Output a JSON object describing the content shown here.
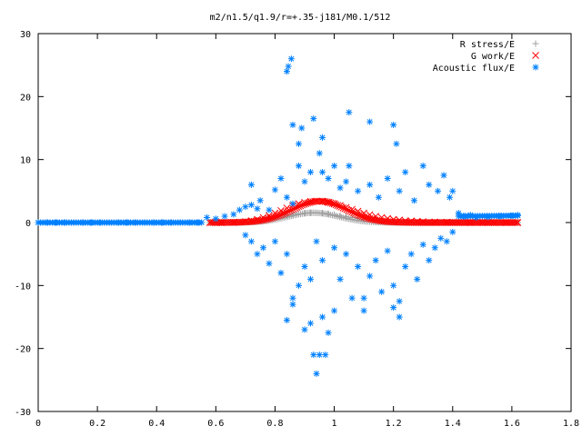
{
  "chart_data": {
    "type": "scatter",
    "title": "m2/n1.5/q1.9/r=+.35-j181/M0.1/512",
    "xlabel": "",
    "ylabel": "",
    "xlim": [
      0,
      1.8
    ],
    "ylim": [
      -30,
      30
    ],
    "x_ticks": [
      "0",
      "0.2",
      "0.4",
      "0.6",
      "0.8",
      "1",
      "1.2",
      "1.4",
      "1.6",
      "1.8"
    ],
    "y_ticks": [
      "30",
      "20",
      "10",
      "0",
      "-10",
      "-20",
      "-30"
    ],
    "grid": false,
    "legend_position": "top-right",
    "series": [
      {
        "name": "R stress/E",
        "marker": "plus",
        "color": "#a0a0a0",
        "points": [
          [
            0.58,
            0
          ],
          [
            0.62,
            0
          ],
          [
            0.66,
            0.02
          ],
          [
            0.7,
            0.1
          ],
          [
            0.72,
            0.2
          ],
          [
            0.74,
            0.3
          ],
          [
            0.76,
            0.5
          ],
          [
            0.78,
            0.65
          ],
          [
            0.8,
            0.8
          ],
          [
            0.82,
            1.0
          ],
          [
            0.84,
            1.15
          ],
          [
            0.86,
            1.3
          ],
          [
            0.88,
            1.4
          ],
          [
            0.9,
            1.5
          ],
          [
            0.92,
            1.55
          ],
          [
            0.94,
            1.55
          ],
          [
            0.96,
            1.5
          ],
          [
            0.98,
            1.4
          ],
          [
            1.0,
            1.25
          ],
          [
            1.02,
            1.1
          ],
          [
            1.04,
            0.95
          ],
          [
            1.06,
            0.8
          ],
          [
            1.08,
            0.65
          ],
          [
            1.1,
            0.5
          ],
          [
            1.12,
            0.4
          ],
          [
            1.14,
            0.3
          ],
          [
            1.16,
            0.2
          ],
          [
            1.18,
            0.15
          ],
          [
            1.2,
            0.1
          ],
          [
            1.24,
            0.05
          ],
          [
            1.28,
            0.02
          ],
          [
            1.32,
            0
          ],
          [
            1.36,
            0
          ],
          [
            1.4,
            0
          ],
          [
            1.44,
            0
          ],
          [
            1.48,
            0
          ],
          [
            1.52,
            0
          ],
          [
            1.56,
            0
          ],
          [
            1.6,
            0
          ],
          [
            1.62,
            0
          ]
        ]
      },
      {
        "name": "G work/E",
        "marker": "cross",
        "color": "#ff0000",
        "points": [
          [
            0.58,
            0
          ],
          [
            0.62,
            0
          ],
          [
            0.66,
            0.02
          ],
          [
            0.7,
            0.15
          ],
          [
            0.72,
            0.3
          ],
          [
            0.74,
            0.5
          ],
          [
            0.76,
            0.8
          ],
          [
            0.78,
            1.1
          ],
          [
            0.8,
            1.5
          ],
          [
            0.82,
            1.9
          ],
          [
            0.84,
            2.3
          ],
          [
            0.86,
            2.7
          ],
          [
            0.88,
            3.0
          ],
          [
            0.9,
            3.2
          ],
          [
            0.92,
            3.35
          ],
          [
            0.94,
            3.4
          ],
          [
            0.96,
            3.35
          ],
          [
            0.98,
            3.2
          ],
          [
            1.0,
            3.0
          ],
          [
            1.02,
            2.7
          ],
          [
            1.04,
            2.4
          ],
          [
            1.06,
            2.1
          ],
          [
            1.08,
            1.8
          ],
          [
            1.1,
            1.5
          ],
          [
            1.12,
            1.25
          ],
          [
            1.14,
            1.0
          ],
          [
            1.16,
            0.8
          ],
          [
            1.18,
            0.65
          ],
          [
            1.2,
            0.5
          ],
          [
            1.22,
            0.4
          ],
          [
            1.24,
            0.3
          ],
          [
            1.26,
            0.25
          ],
          [
            1.28,
            0.2
          ],
          [
            1.3,
            0.15
          ],
          [
            1.34,
            0.1
          ],
          [
            1.38,
            0.05
          ],
          [
            1.42,
            0
          ],
          [
            1.46,
            0
          ],
          [
            1.5,
            0
          ],
          [
            1.54,
            0
          ],
          [
            1.58,
            0
          ],
          [
            1.62,
            0
          ]
        ]
      },
      {
        "name": "Acoustic flux/E",
        "marker": "star",
        "color": "#0080ff",
        "points": [
          [
            0.0,
            0
          ],
          [
            0.03,
            0
          ],
          [
            0.06,
            0
          ],
          [
            0.09,
            0
          ],
          [
            0.12,
            0
          ],
          [
            0.15,
            0
          ],
          [
            0.18,
            0
          ],
          [
            0.21,
            0
          ],
          [
            0.24,
            0
          ],
          [
            0.27,
            0
          ],
          [
            0.3,
            0
          ],
          [
            0.33,
            0
          ],
          [
            0.36,
            0
          ],
          [
            0.39,
            0
          ],
          [
            0.42,
            0
          ],
          [
            0.45,
            0
          ],
          [
            0.48,
            0
          ],
          [
            0.51,
            0
          ],
          [
            0.54,
            0
          ],
          [
            0.57,
            0.8
          ],
          [
            0.6,
            0.6
          ],
          [
            0.63,
            1.0
          ],
          [
            0.66,
            1.3
          ],
          [
            0.68,
            2.0
          ],
          [
            0.7,
            2.5
          ],
          [
            0.72,
            2.8
          ],
          [
            0.74,
            2.2
          ],
          [
            0.78,
            2.0
          ],
          [
            0.72,
            6.0
          ],
          [
            0.75,
            3.5
          ],
          [
            0.8,
            5.2
          ],
          [
            0.82,
            7.0
          ],
          [
            0.84,
            4.0
          ],
          [
            0.86,
            3.0
          ],
          [
            0.88,
            9.0
          ],
          [
            0.9,
            6.5
          ],
          [
            0.92,
            8.0
          ],
          [
            0.84,
            24.0
          ],
          [
            0.845,
            24.8
          ],
          [
            0.855,
            26.0
          ],
          [
            0.86,
            15.5
          ],
          [
            0.88,
            12.5
          ],
          [
            0.89,
            15.0
          ],
          [
            0.93,
            16.5
          ],
          [
            0.95,
            11.0
          ],
          [
            0.96,
            13.5
          ],
          [
            1.05,
            17.5
          ],
          [
            1.12,
            16.0
          ],
          [
            1.2,
            15.5
          ],
          [
            1.21,
            12.5
          ],
          [
            0.96,
            8.0
          ],
          [
            0.98,
            7.0
          ],
          [
            1.0,
            9.0
          ],
          [
            1.02,
            5.5
          ],
          [
            1.04,
            6.5
          ],
          [
            1.05,
            9.0
          ],
          [
            1.08,
            5.0
          ],
          [
            1.12,
            6.0
          ],
          [
            1.15,
            4.0
          ],
          [
            1.18,
            7.0
          ],
          [
            1.22,
            5.0
          ],
          [
            1.24,
            8.0
          ],
          [
            1.27,
            3.5
          ],
          [
            1.3,
            9.0
          ],
          [
            1.32,
            6.0
          ],
          [
            1.35,
            5.0
          ],
          [
            1.37,
            7.5
          ],
          [
            1.39,
            4.0
          ],
          [
            1.4,
            5.0
          ],
          [
            1.42,
            1.5
          ],
          [
            1.44,
            1.0
          ],
          [
            1.46,
            1.2
          ],
          [
            1.48,
            0.8
          ],
          [
            1.52,
            0.9
          ],
          [
            1.56,
            1.0
          ],
          [
            1.6,
            1.1
          ],
          [
            1.62,
            1.2
          ],
          [
            0.7,
            -2.0
          ],
          [
            0.72,
            -3.0
          ],
          [
            0.74,
            -5.0
          ],
          [
            0.76,
            -4.0
          ],
          [
            0.78,
            -6.5
          ],
          [
            0.8,
            -3.0
          ],
          [
            0.82,
            -8.0
          ],
          [
            0.84,
            -5.0
          ],
          [
            0.86,
            -12.0
          ],
          [
            0.88,
            -10.0
          ],
          [
            0.9,
            -7.0
          ],
          [
            0.92,
            -9.0
          ],
          [
            0.84,
            -15.5
          ],
          [
            0.86,
            -13.0
          ],
          [
            0.9,
            -17.0
          ],
          [
            0.92,
            -16.0
          ],
          [
            0.96,
            -15.0
          ],
          [
            0.98,
            -17.5
          ],
          [
            0.93,
            -21.0
          ],
          [
            0.95,
            -21.0
          ],
          [
            0.97,
            -21.0
          ],
          [
            0.94,
            -24.0
          ],
          [
            0.94,
            -3.0
          ],
          [
            0.96,
            -6.0
          ],
          [
            1.0,
            -4.0
          ],
          [
            1.02,
            -9.0
          ],
          [
            1.04,
            -5.0
          ],
          [
            1.06,
            -12.0
          ],
          [
            1.08,
            -7.0
          ],
          [
            1.1,
            -14.0
          ],
          [
            1.12,
            -8.5
          ],
          [
            1.14,
            -6.0
          ],
          [
            1.16,
            -11.0
          ],
          [
            1.18,
            -4.5
          ],
          [
            1.2,
            -10.0
          ],
          [
            1.22,
            -12.5
          ],
          [
            1.24,
            -7.0
          ],
          [
            1.26,
            -5.0
          ],
          [
            1.28,
            -9.0
          ],
          [
            1.3,
            -3.5
          ],
          [
            1.32,
            -6.0
          ],
          [
            1.34,
            -4.0
          ],
          [
            1.36,
            -2.5
          ],
          [
            1.38,
            -3.0
          ],
          [
            1.4,
            -1.5
          ],
          [
            1.0,
            -14.0
          ],
          [
            1.1,
            -12.0
          ],
          [
            1.2,
            -13.5
          ],
          [
            1.22,
            -15.0
          ]
        ]
      }
    ]
  }
}
